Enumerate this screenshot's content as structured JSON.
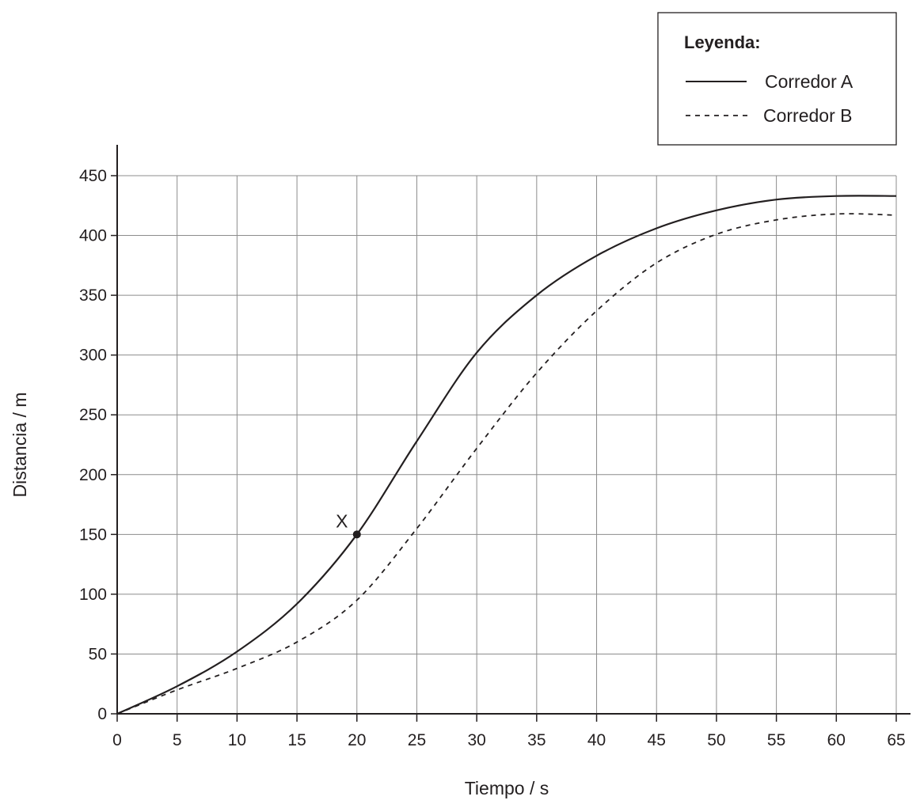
{
  "chart_data": {
    "type": "line",
    "xlabel": "Tiempo / s",
    "ylabel": "Distancia / m",
    "xlim": [
      0,
      65
    ],
    "ylim": [
      0,
      450
    ],
    "x_ticks": [
      0,
      5,
      10,
      15,
      20,
      25,
      30,
      35,
      40,
      45,
      50,
      55,
      60,
      65
    ],
    "y_ticks": [
      0,
      50,
      100,
      150,
      200,
      250,
      300,
      350,
      400,
      450
    ],
    "grid": true,
    "legend": {
      "title": "Leyenda:",
      "placement": "top-right"
    },
    "series": [
      {
        "name": "Corredor A",
        "style": "solid",
        "x": [
          0,
          5,
          10,
          15,
          20,
          25,
          30,
          35,
          40,
          45,
          50,
          55,
          60,
          65
        ],
        "y": [
          0,
          23,
          52,
          92,
          150,
          228,
          302,
          350,
          383,
          406,
          421,
          430,
          433,
          433
        ]
      },
      {
        "name": "Corredor B",
        "style": "dashed",
        "x": [
          0,
          5,
          10,
          15,
          20,
          25,
          30,
          35,
          40,
          45,
          50,
          55,
          60,
          65
        ],
        "y": [
          0,
          20,
          38,
          60,
          95,
          155,
          222,
          285,
          337,
          377,
          401,
          413,
          418,
          417
        ]
      }
    ],
    "annotations": [
      {
        "label": "X",
        "x": 20,
        "y": 150
      }
    ]
  },
  "colors": {
    "ink": "#231f20",
    "grid": "#8c8c8c"
  }
}
